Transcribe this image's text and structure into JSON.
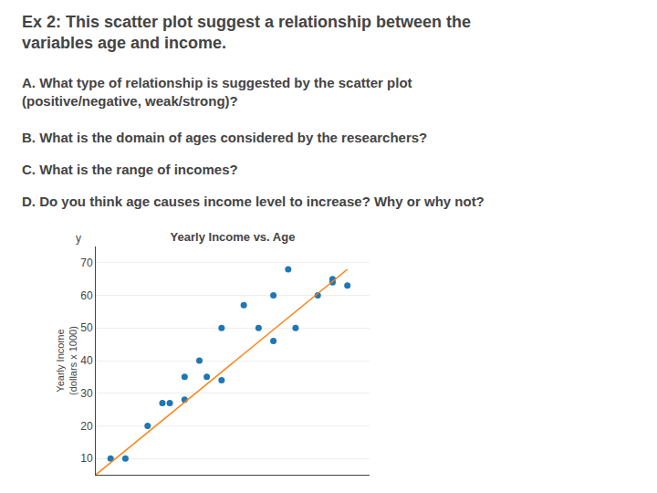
{
  "chart_data": {
    "type": "scatter",
    "title": "Yearly Income vs. Age",
    "ylabel": "Yearly Income\n(dollars x 1000)",
    "annotations": [
      "Ex 2: This scatter plot suggest a relationship between the\nvariables age and income.",
      "A. What type of relationship is suggested by the scatter plot\n(positive/negative, weak/strong)?",
      "B. What is the domain of ages considered by the researchers?",
      "C. What is the range of incomes?",
      "D. Do you think age causes income level to increase? Why or why not?",
      "y"
    ],
    "series": [
      {
        "type": "scatter",
        "x": [
          20,
          22,
          25,
          27,
          28,
          30,
          30,
          32,
          33,
          35,
          35,
          38,
          40,
          42,
          42,
          44,
          45,
          48,
          50,
          50,
          52
        ],
        "values": [
          10,
          10,
          20,
          27,
          27,
          28,
          35,
          40,
          35,
          34,
          50,
          57,
          50,
          46,
          60,
          68,
          50,
          60,
          64,
          65,
          63
        ]
      },
      {
        "type": "line",
        "x": [
          18,
          52
        ],
        "values": [
          5,
          68
        ]
      }
    ],
    "xlim": [
      18,
      55
    ],
    "xticks": [],
    "ylim": [
      5,
      75
    ],
    "yticks": [
      10,
      20,
      30,
      40,
      50,
      60,
      70
    ],
    "grid": true,
    "tick_labels": "y"
  }
}
